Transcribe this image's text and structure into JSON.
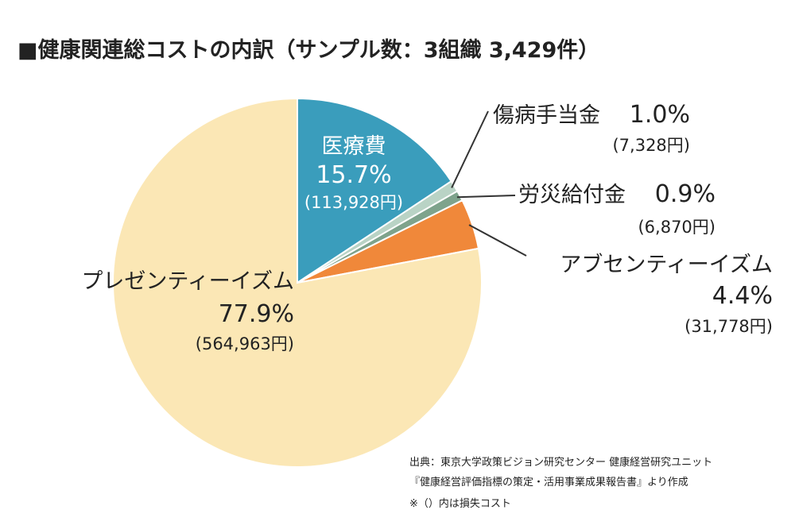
{
  "chart_data": {
    "type": "pie",
    "title": "■健康関連総コストの内訳（サンプル数：3組織 3,429件）",
    "slices": [
      {
        "label": "医療費",
        "percent_label": "15.7%",
        "amount_label": "(113,928円)",
        "value": 15.7,
        "color": "#3a9dbc"
      },
      {
        "label": "傷病手当金",
        "percent_label": "1.0%",
        "amount_label": "(7,328円)",
        "value": 1.0,
        "color": "#b9d3c5"
      },
      {
        "label": "労災給付金",
        "percent_label": "0.9%",
        "amount_label": "(6,870円)",
        "value": 0.9,
        "color": "#7ea38c"
      },
      {
        "label": "アブセンティーイズム",
        "percent_label": "4.4%",
        "amount_label": "(31,778円)",
        "value": 4.4,
        "color": "#f0883a"
      },
      {
        "label": "プレゼンティーイズム",
        "percent_label": "77.9%",
        "amount_label": "(564,963円)",
        "value": 77.9,
        "color": "#fbe7b5"
      }
    ],
    "source": [
      "出典：東京大学政策ビジョン研究センター 健康経営研究ユニット",
      "『健康経営評価指標の策定・活用事業成果報告書』より作成",
      "※（）内は損失コスト"
    ]
  }
}
